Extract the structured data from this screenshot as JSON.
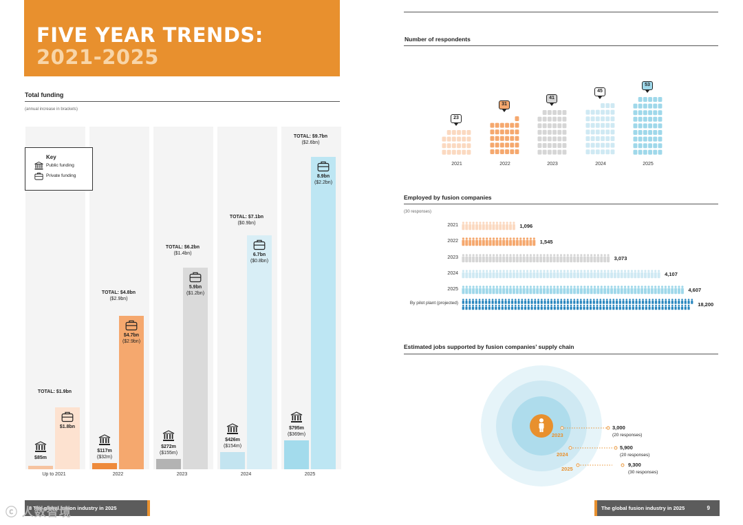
{
  "banner": {
    "line1": "FIVE YEAR TRENDS:",
    "line2": "2021-2025",
    "bg": "#e8902e"
  },
  "funding": {
    "title": "Total funding",
    "subtitle": "(annual increase in brackets)",
    "key": {
      "title": "Key",
      "public": "Public funding",
      "private": "Private funding"
    },
    "columns": [
      {
        "axis": "Up to 2021",
        "total": "TOTAL: $1.9bn",
        "total_inc": "",
        "public": "$85m",
        "public_inc": "",
        "private": "$1.8bn",
        "private_inc": ""
      },
      {
        "axis": "2022",
        "total": "TOTAL: $4.8bn",
        "total_inc": "($2.9bn)",
        "public": "$117m",
        "public_inc": "($32m)",
        "private": "$4.7bn",
        "private_inc": "($2.9bn)"
      },
      {
        "axis": "2023",
        "total": "TOTAL: $6.2bn",
        "total_inc": "($1.4bn)",
        "public": "$272m",
        "public_inc": "($155m)",
        "private": "5.9bn",
        "private_inc": "($1.2bn)"
      },
      {
        "axis": "2024",
        "total": "TOTAL: $7.1bn",
        "total_inc": "($0.9bn)",
        "public": "$426m",
        "public_inc": "($154m)",
        "private": "6.7bn",
        "private_inc": "($0.8bn)"
      },
      {
        "axis": "2025",
        "total": "TOTAL: $9.7bn",
        "total_inc": "($2.6bn)",
        "public": "$795m",
        "public_inc": "($369m)",
        "private": "8.9bn",
        "private_inc": "($2.2bn)"
      }
    ]
  },
  "respondents": {
    "title": "Number of respondents",
    "years": [
      {
        "year": "2021",
        "count": "23",
        "n": 23,
        "color": "#fbd9c0",
        "badge": "#ffffff"
      },
      {
        "year": "2022",
        "count": "31",
        "n": 31,
        "color": "#f5a86e",
        "badge": "#f5a86e"
      },
      {
        "year": "2023",
        "count": "41",
        "n": 41,
        "color": "#d6d6d6",
        "badge": "#d6d6d6"
      },
      {
        "year": "2024",
        "count": "45",
        "n": 45,
        "color": "#cfe9f3",
        "badge": "#ffffff"
      },
      {
        "year": "2025",
        "count": "53",
        "n": 53,
        "color": "#9fd8ea",
        "badge": "#9fd8ea"
      }
    ]
  },
  "employed": {
    "title": "Employed by fusion companies",
    "subtitle": "(30 responses)",
    "rows": [
      {
        "year": "2021",
        "value": "1,096",
        "n": 1096,
        "color": "#fbd9c0"
      },
      {
        "year": "2022",
        "value": "1,545",
        "n": 1545,
        "color": "#f5a86e"
      },
      {
        "year": "2023",
        "value": "3,073",
        "n": 3073,
        "color": "#d6d6d6"
      },
      {
        "year": "2024",
        "value": "4,107",
        "n": 4107,
        "color": "#cfe9f3"
      },
      {
        "year": "2025",
        "value": "4,607",
        "n": 4607,
        "color": "#9fd8ea"
      },
      {
        "year": "By pilot plant (projected)",
        "value": "18,200",
        "n": 18200,
        "color": "#2a87bf"
      }
    ]
  },
  "supply": {
    "title": "Estimated jobs supported by fusion companies’ supply chain",
    "rings": [
      {
        "year": "2023",
        "value": "3,000",
        "note": "(20 responses)"
      },
      {
        "year": "2024",
        "value": "5,900",
        "note": "(20 responses)"
      },
      {
        "year": "2025",
        "value": "9,300",
        "note": "(30 responses)"
      }
    ]
  },
  "footer": {
    "left": "8     The global fusion industry in 2025",
    "right": "The global fusion industry in 2025",
    "page": "9",
    "watermark": "ⓒ 人数智境"
  }
}
